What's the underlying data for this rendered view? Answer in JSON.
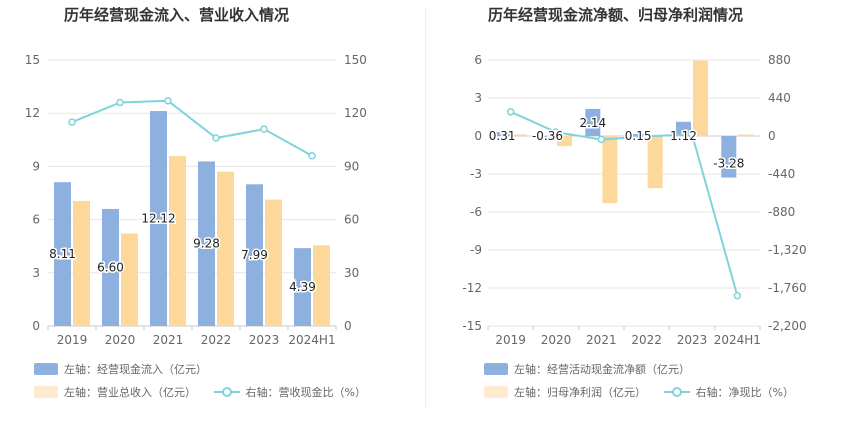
{
  "panels": [
    {
      "title": "历年经营现金流入、营业收入情况",
      "legend": [
        {
          "label": "左轴：经营现金流入（亿元）",
          "kind": "bar",
          "color": "#8eb0de"
        },
        {
          "label": "左轴：营业总收入（亿元）",
          "kind": "bar",
          "color": "#fdd89b"
        },
        {
          "label": "右轴：营收现金比（%）",
          "kind": "line",
          "color": "#7fd3dc"
        }
      ]
    },
    {
      "title": "历年经营现金流净额、归母净利润情况",
      "legend": [
        {
          "label": "左轴：经营活动现金流净额（亿元）",
          "kind": "bar",
          "color": "#8eb0de"
        },
        {
          "label": "左轴：归母净利润（亿元）",
          "kind": "bar",
          "color": "#fdd89b"
        },
        {
          "label": "右轴：净现比（%）",
          "kind": "line",
          "color": "#7fd3dc"
        }
      ]
    }
  ],
  "chart_data": [
    {
      "type": "bar",
      "title": "历年经营现金流入、营业收入情况",
      "categories": [
        "2019",
        "2020",
        "2021",
        "2022",
        "2023",
        "2024H1"
      ],
      "y_left": {
        "ticks": [
          "0",
          "3",
          "6",
          "9",
          "12",
          "15"
        ],
        "lim": [
          0,
          15
        ]
      },
      "y_right": {
        "ticks": [
          "0",
          "30",
          "60",
          "90",
          "120",
          "150"
        ],
        "lim": [
          0,
          150
        ]
      },
      "series": [
        {
          "name": "经营现金流入（亿元）",
          "axis": "left",
          "kind": "bar",
          "color": "#8eb0de",
          "values": [
            8.11,
            6.6,
            12.12,
            9.28,
            7.99,
            4.39
          ],
          "labels": [
            "8.11",
            "6.60",
            "12.12",
            "9.28",
            "7.99",
            "4.39"
          ]
        },
        {
          "name": "营业总收入（亿元）",
          "axis": "left",
          "kind": "bar",
          "color": "#fdd89b",
          "values": [
            7.05,
            5.22,
            9.58,
            8.7,
            7.13,
            4.55
          ]
        },
        {
          "name": "营收现金比（%）",
          "axis": "right",
          "kind": "line",
          "color": "#7fd3dc",
          "values": [
            115,
            126,
            127,
            106,
            111,
            96
          ]
        }
      ]
    },
    {
      "type": "bar",
      "title": "历年经营现金流净额、归母净利润情况",
      "categories": [
        "2019",
        "2020",
        "2021",
        "2022",
        "2023",
        "2024H1"
      ],
      "y_left": {
        "ticks": [
          "-15",
          "-12",
          "-9",
          "-6",
          "-3",
          "0",
          "3",
          "6"
        ],
        "lim": [
          -15,
          6
        ]
      },
      "y_right": {
        "ticks": [
          "-2,200",
          "-1,760",
          "-1,320",
          "-880",
          "-440",
          "0",
          "440",
          "880"
        ],
        "lim": [
          -2200,
          880
        ]
      },
      "series": [
        {
          "name": "经营活动现金流净额（亿元）",
          "axis": "left",
          "kind": "bar",
          "color": "#8eb0de",
          "values": [
            0.31,
            -0.36,
            2.14,
            0.15,
            1.12,
            -3.28
          ],
          "labels": [
            "0.31",
            "-0.36",
            "2.14",
            "0.15",
            "1.12",
            "-3.28"
          ]
        },
        {
          "name": "归母净利润（亿元）",
          "axis": "left",
          "kind": "bar",
          "color": "#fdd89b",
          "values": [
            0.12,
            -0.8,
            -5.3,
            -4.12,
            5.95,
            0.12
          ]
        },
        {
          "name": "净现比（%）",
          "axis": "right",
          "kind": "line",
          "color": "#7fd3dc",
          "values": [
            280,
            45,
            -40,
            -5,
            20,
            -1850
          ]
        }
      ]
    }
  ]
}
